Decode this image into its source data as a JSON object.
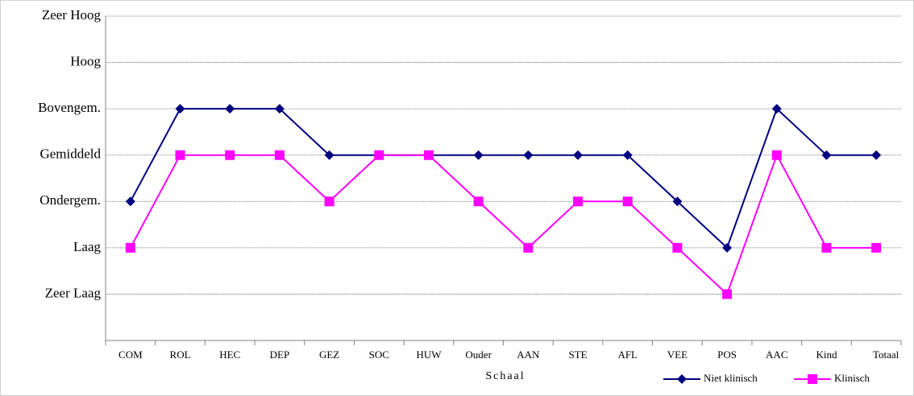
{
  "chart_data": {
    "type": "line",
    "x_label": "Schaal",
    "categories": [
      "COM",
      "ROL",
      "HEC",
      "DEP",
      "GEZ",
      "SOC",
      "HUW",
      "Ouder",
      "AAN",
      "STE",
      "AFL",
      "VEE",
      "POS",
      "AAC",
      "Kind",
      "Totaal"
    ],
    "series": [
      {
        "name": "Niet klinisch",
        "color": "#000080",
        "marker": "diamond",
        "values": [
          3,
          5,
          5,
          5,
          4,
          4,
          4,
          4,
          4,
          4,
          4,
          3,
          2,
          5,
          4,
          4
        ]
      },
      {
        "name": "Klinisch",
        "color": "#ff00ff",
        "marker": "square",
        "values": [
          2,
          4,
          4,
          4,
          3,
          4,
          4,
          3,
          2,
          3,
          3,
          2,
          1,
          4,
          2,
          2
        ]
      }
    ],
    "ylim": [
      0,
      7
    ],
    "yticks": [
      {
        "value": 1,
        "label": "Zeer Laag"
      },
      {
        "value": 2,
        "label": "Laag"
      },
      {
        "value": 3,
        "label": "Ondergem."
      },
      {
        "value": 4,
        "label": "Gemiddeld"
      },
      {
        "value": 5,
        "label": "Bovengem."
      },
      {
        "value": 6,
        "label": "Hoog"
      },
      {
        "value": 7,
        "label": "Zeer Hoog"
      }
    ],
    "grid": true,
    "legend": "lower right"
  }
}
